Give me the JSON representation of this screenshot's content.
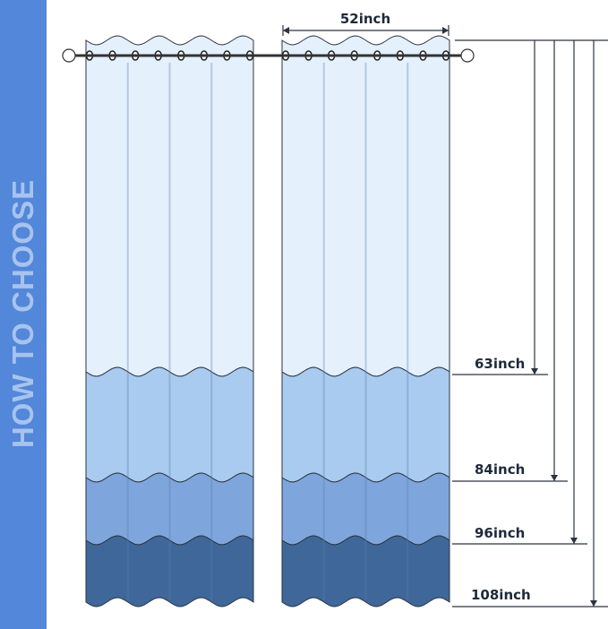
{
  "side_banner": {
    "text": "HOW TO CHOOSE",
    "color": "#5287d9"
  },
  "width_label": "52inch",
  "length_labels": [
    "63inch",
    "84inch",
    "96inch",
    "108inch"
  ],
  "colors": {
    "band_63": "#e4f0fc",
    "band_84": "#a9cbf0",
    "band_96": "#7ea6dc",
    "band_108": "#3f6799",
    "lines": "#2b3440"
  }
}
